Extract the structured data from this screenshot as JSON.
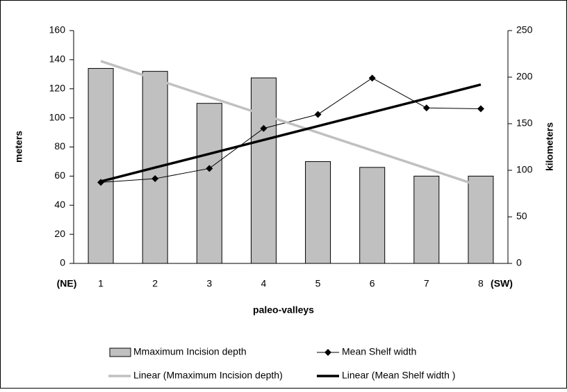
{
  "chart_data": {
    "type": "bar-line",
    "categories": [
      "1",
      "2",
      "3",
      "4",
      "5",
      "6",
      "7",
      "8"
    ],
    "x_label": "paleo-valleys",
    "y_label": "meters",
    "y2_label": "kilometers",
    "annotations": [
      "(NE)",
      "(SW)"
    ],
    "ylim": [
      0,
      160
    ],
    "yticks": [
      0,
      20,
      40,
      60,
      80,
      100,
      120,
      140,
      160
    ],
    "y2lim": [
      0,
      250
    ],
    "y2ticks": [
      0,
      50,
      100,
      150,
      200,
      250
    ],
    "series": [
      {
        "name": "Mmaximum Incision depth",
        "kind": "bar",
        "color": "#c0c0c0",
        "values": [
          134,
          132,
          110,
          127.5,
          70,
          66,
          60,
          60
        ]
      },
      {
        "name": "Mean Shelf width",
        "kind": "line",
        "axis": "y2",
        "color": "#000000",
        "values": [
          87,
          91,
          102,
          145,
          160,
          199,
          167,
          166
        ]
      },
      {
        "name": "Linear (Mmaximum Incision depth)",
        "kind": "trend",
        "color": "#c0c0c0",
        "values": [
          139,
          126.7,
          114.4,
          102.1,
          89.9,
          77.6,
          65.3,
          53
        ]
      },
      {
        "name": "Linear (Mean Shelf width )",
        "kind": "trend",
        "axis": "y2",
        "color": "#000000",
        "values": [
          88,
          102.9,
          117.7,
          132.6,
          147.4,
          162.3,
          177.1,
          192
        ]
      }
    ]
  }
}
